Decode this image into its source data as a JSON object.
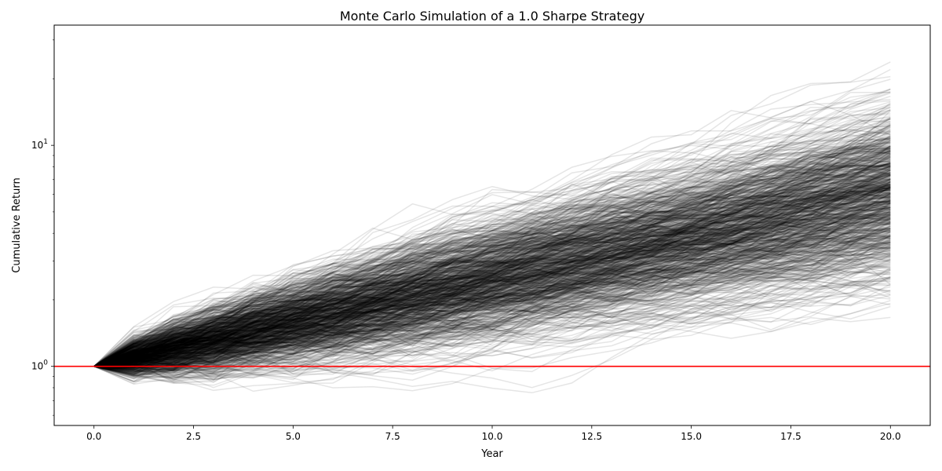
{
  "chart_data": {
    "type": "line",
    "title": "Monte Carlo Simulation of a 1.0 Sharpe Strategy",
    "xlabel": "Year",
    "ylabel": "Cumulative Return",
    "xlim": [
      -1,
      21
    ],
    "ylim": [
      0.54,
      35
    ],
    "yscale": "log",
    "grid": false,
    "legend": "none",
    "x_ticks": [
      0.0,
      2.5,
      5.0,
      7.5,
      10.0,
      12.5,
      15.0,
      17.5,
      20.0
    ],
    "x_tick_labels": [
      "0.0",
      "2.5",
      "5.0",
      "7.5",
      "10.0",
      "12.5",
      "15.0",
      "17.5",
      "20.0"
    ],
    "y_ticks": [
      1,
      10
    ],
    "y_tick_base": "10",
    "y_tick_exponents": [
      "0",
      "1"
    ],
    "simulation": {
      "years": [
        0,
        1,
        2,
        3,
        4,
        5,
        6,
        7,
        8,
        9,
        10,
        11,
        12,
        13,
        14,
        15,
        16,
        17,
        18,
        19,
        20
      ],
      "num_paths": 900,
      "sharpe": 1.0,
      "annual_mu": 0.1,
      "annual_sigma": 0.1,
      "start_value": 1.0,
      "line_color": "#000000",
      "line_opacity": 0.1
    },
    "reference_line": {
      "y": 1,
      "color": "#ff0000"
    }
  }
}
